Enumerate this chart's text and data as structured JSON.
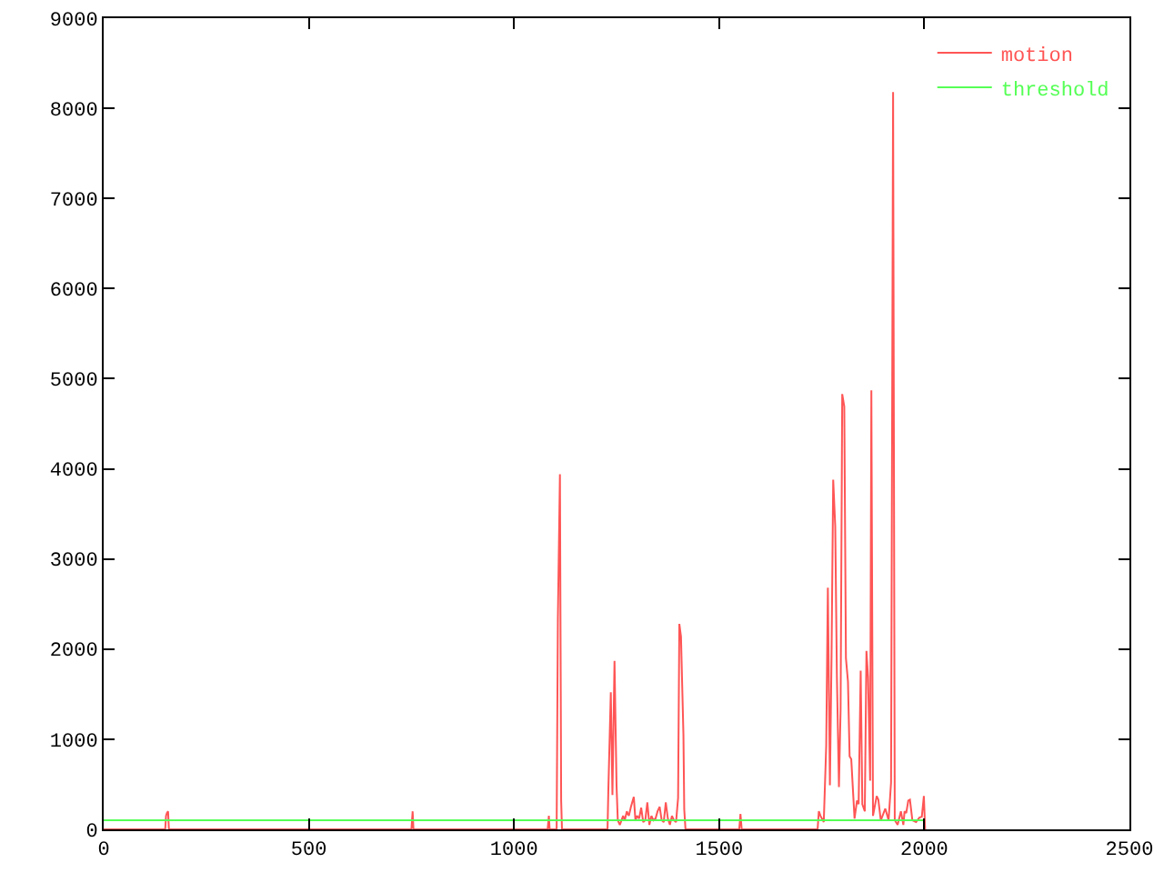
{
  "chart_data": {
    "type": "line",
    "xlim": [
      0,
      2500
    ],
    "ylim": [
      0,
      9000
    ],
    "xticks": [
      0,
      500,
      1000,
      1500,
      2000,
      2500
    ],
    "yticks": [
      0,
      1000,
      2000,
      3000,
      4000,
      5000,
      6000,
      7000,
      8000,
      9000
    ],
    "legend": "top right",
    "marker": "none",
    "line_style": "solid",
    "series": [
      {
        "name": "motion",
        "color": "#ff5555",
        "x": [
          0,
          150,
          152,
          154,
          157,
          159,
          750,
          753,
          755,
          1082,
          1085,
          1087,
          1104,
          1107,
          1112,
          1115,
          1117,
          1228,
          1230,
          1236,
          1240,
          1245,
          1250,
          1253,
          1258,
          1262,
          1266,
          1270,
          1275,
          1280,
          1285,
          1292,
          1296,
          1300,
          1305,
          1310,
          1315,
          1320,
          1325,
          1330,
          1335,
          1340,
          1345,
          1350,
          1355,
          1360,
          1365,
          1370,
          1375,
          1380,
          1385,
          1390,
          1395,
          1400,
          1403,
          1407,
          1413,
          1415,
          1418,
          1549,
          1552,
          1555,
          1740,
          1743,
          1747,
          1755,
          1761,
          1765,
          1770,
          1774,
          1778,
          1783,
          1787,
          1792,
          1796,
          1800,
          1805,
          1809,
          1814,
          1818,
          1822,
          1830,
          1836,
          1840,
          1845,
          1849,
          1855,
          1859,
          1863,
          1868,
          1871,
          1875,
          1884,
          1888,
          1894,
          1905,
          1913,
          1919,
          1924,
          1928,
          1935,
          1943,
          1949,
          1952,
          1956,
          1961,
          1965,
          1971,
          1980,
          1988,
          1994,
          1999,
          2002
        ],
        "values": [
          0,
          0,
          150,
          180,
          200,
          0,
          0,
          200,
          0,
          0,
          150,
          0,
          0,
          2340,
          3940,
          320,
          0,
          0,
          440,
          1520,
          380,
          1870,
          480,
          100,
          50,
          100,
          150,
          100,
          200,
          150,
          250,
          360,
          100,
          150,
          120,
          240,
          80,
          100,
          300,
          50,
          150,
          100,
          120,
          200,
          250,
          100,
          80,
          300,
          120,
          50,
          150,
          100,
          80,
          350,
          2280,
          2140,
          1050,
          220,
          0,
          0,
          170,
          0,
          0,
          200,
          150,
          80,
          930,
          2680,
          490,
          1930,
          3880,
          3360,
          1700,
          470,
          1330,
          4830,
          4690,
          1900,
          1640,
          810,
          780,
          120,
          320,
          280,
          1760,
          280,
          200,
          1980,
          1690,
          540,
          4870,
          150,
          370,
          330,
          100,
          230,
          100,
          520,
          8180,
          100,
          50,
          200,
          50,
          200,
          180,
          320,
          330,
          100,
          80,
          130,
          140,
          370,
          0
        ]
      },
      {
        "name": "threshold",
        "color": "#55ff55",
        "x": [
          0,
          2000
        ],
        "values": [
          100,
          100
        ]
      }
    ]
  }
}
